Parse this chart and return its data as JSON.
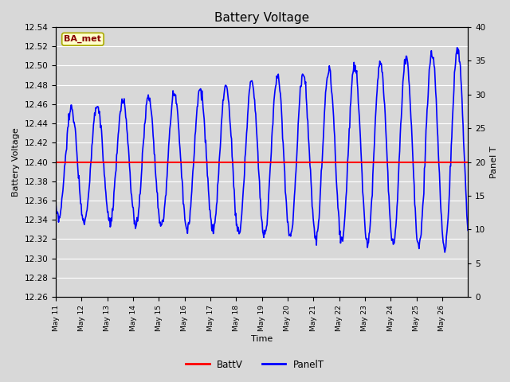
{
  "title": "Battery Voltage",
  "xlabel": "Time",
  "ylabel_left": "Battery Voltage",
  "ylabel_right": "Panel T",
  "annotation_text": "BA_met",
  "annotation_facecolor": "#ffffcc",
  "annotation_edgecolor": "#aaaa00",
  "annotation_textcolor": "#880000",
  "ylim_left": [
    12.26,
    12.54
  ],
  "ylim_right": [
    0,
    40
  ],
  "yticks_left": [
    12.26,
    12.28,
    12.3,
    12.32,
    12.34,
    12.36,
    12.38,
    12.4,
    12.42,
    12.44,
    12.46,
    12.48,
    12.5,
    12.52,
    12.54
  ],
  "yticks_right": [
    0,
    5,
    10,
    15,
    20,
    25,
    30,
    35,
    40
  ],
  "background_color": "#d8d8d8",
  "axes_facecolor": "#d8d8d8",
  "grid_color": "#ffffff",
  "batt_color": "red",
  "panel_color": "blue",
  "batt_value": 12.4,
  "xtick_labels": [
    "May 11",
    "May 12",
    "May 13",
    "May 14",
    "May 15",
    "May 16",
    "May 17",
    "May 18",
    "May 19",
    "May 20",
    "May 21",
    "May 22",
    "May 23",
    "May 24",
    "May 25",
    "May 26"
  ]
}
